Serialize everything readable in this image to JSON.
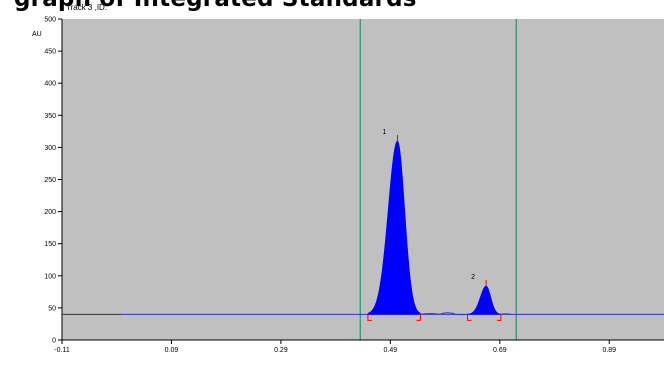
{
  "caption": "graph of Integrated Standards",
  "track_label": "Track 3 ,ID:",
  "colors": {
    "background": "#c0c0c0",
    "peak_fill": "#0000ff",
    "baseline": "#3333cc",
    "marker_line": "#2e8b7a",
    "peak_tick": "#ff0000"
  },
  "chart_data": {
    "type": "area",
    "title": "",
    "xlabel": "",
    "ylabel": "AU",
    "xlim": [
      -0.11,
      0.99
    ],
    "ylim": [
      0,
      500
    ],
    "x_ticks": [
      "-0.11",
      "0.09",
      "0.29",
      "0.49",
      "0.69",
      "0.89"
    ],
    "x_tick_values": [
      -0.11,
      0.09,
      0.29,
      0.49,
      0.69,
      0.89
    ],
    "y_ticks": [
      0,
      50,
      100,
      150,
      200,
      250,
      300,
      350,
      400,
      450,
      500
    ],
    "baseline": 40,
    "grid": false,
    "vertical_markers": [
      0.435,
      0.72
    ],
    "peaks": [
      {
        "label": "1",
        "rf": 0.503,
        "height": 310,
        "start": 0.449,
        "end": 0.545
      },
      {
        "label": "2",
        "rf": 0.665,
        "height": 84,
        "start": 0.631,
        "end": 0.692
      }
    ]
  }
}
